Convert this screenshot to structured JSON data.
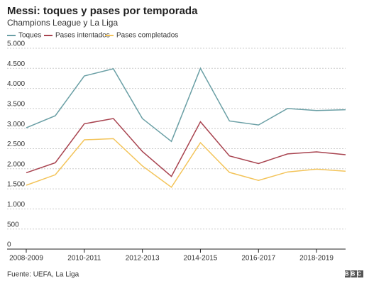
{
  "chart_data": {
    "type": "line",
    "title": "Messi: toques y pases por temporada",
    "subtitle": "Champions League y La Liga",
    "categories": [
      "2008-2009",
      null,
      "2010-2011",
      null,
      "2012-2013",
      null,
      "2014-2015",
      null,
      "2016-2017",
      null,
      "2018-2019",
      null
    ],
    "series": [
      {
        "name": "Toques",
        "color": "#6a9fa5",
        "values": [
          3020,
          3320,
          4310,
          4490,
          3250,
          2680,
          4500,
          3190,
          3090,
          3500,
          3450,
          3470
        ]
      },
      {
        "name": "Pases intentados",
        "color": "#a8434f",
        "values": [
          1900,
          2150,
          3120,
          3250,
          2430,
          1810,
          3170,
          2320,
          2130,
          2370,
          2420,
          2350
        ]
      },
      {
        "name": "Pases completados",
        "color": "#f3c45a",
        "values": [
          1590,
          1850,
          2720,
          2750,
          2070,
          1540,
          2650,
          1910,
          1710,
          1920,
          1990,
          1940
        ]
      }
    ],
    "ylim": [
      0,
      5000
    ],
    "yticks": [
      0,
      {
        "value": 500,
        "label": "500"
      },
      {
        "value": 1000,
        "label": "1.000"
      },
      {
        "value": 1500,
        "label": "1.500"
      },
      {
        "value": 2000,
        "label": "2.000"
      },
      {
        "value": 2500,
        "label": "2.500"
      },
      {
        "value": 3000,
        "label": "3.000"
      },
      {
        "value": 3500,
        "label": "3.500"
      },
      {
        "value": 4000,
        "label": "4.000"
      },
      {
        "value": 4500,
        "label": "4.500"
      },
      {
        "value": 5000,
        "label": "5.000"
      }
    ],
    "grid": true,
    "legend": "top",
    "source": "Fuente: UEFA, La Liga",
    "logo": "BBC"
  }
}
